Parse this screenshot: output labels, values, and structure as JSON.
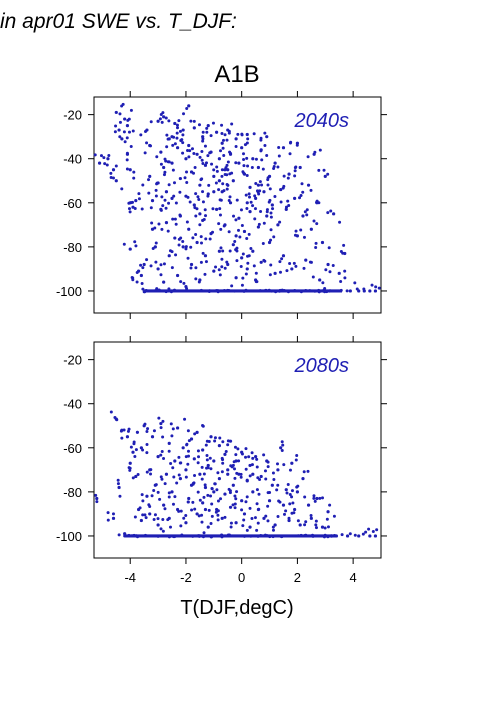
{
  "figure_title": "in apr01 SWE vs. T_DJF:",
  "scenario_title": "A1B",
  "xlabel": "T(DJF,degC)",
  "point_color": "#1f1fb4",
  "chart_data": [
    {
      "type": "scatter",
      "annotation": "2040s",
      "xlim": [
        -5.3,
        5.0
      ],
      "ylim": [
        -110,
        -12
      ],
      "x_ticks": [
        -4,
        -2,
        0,
        2,
        4
      ],
      "y_ticks": [
        -100,
        -80,
        -60,
        -40,
        -20
      ],
      "points": [
        [
          -5.1,
          -42
        ],
        [
          -4.8,
          -40
        ],
        [
          -4.6,
          -45
        ],
        [
          -4.5,
          -50
        ],
        [
          -4.5,
          -19
        ],
        [
          -4.4,
          -27
        ],
        [
          -4.3,
          -31
        ],
        [
          -4.2,
          -22
        ],
        [
          -4.1,
          -25
        ],
        [
          -4.1,
          -38
        ],
        [
          -4.0,
          -60
        ],
        [
          -4.0,
          -45
        ],
        [
          -3.9,
          -62
        ],
        [
          -4.0,
          -81
        ],
        [
          -3.8,
          -59
        ],
        [
          -3.7,
          -91
        ],
        [
          -3.6,
          -93
        ],
        [
          -3.5,
          -88
        ],
        [
          -3.4,
          -27
        ],
        [
          -3.4,
          -100
        ],
        [
          -3.3,
          -34
        ],
        [
          -3.3,
          -48
        ],
        [
          -3.2,
          -59
        ],
        [
          -3.2,
          -72
        ],
        [
          -3.1,
          -80
        ],
        [
          -3.0,
          -23
        ],
        [
          -3.0,
          -51
        ],
        [
          -3.0,
          -90
        ],
        [
          -2.9,
          -37
        ],
        [
          -2.9,
          -63
        ],
        [
          -2.8,
          -21
        ],
        [
          -2.8,
          -44
        ],
        [
          -2.8,
          -96
        ],
        [
          -2.7,
          -55
        ],
        [
          -2.7,
          -69
        ],
        [
          -2.6,
          -31
        ],
        [
          -2.6,
          -84
        ],
        [
          -2.5,
          -42
        ],
        [
          -2.5,
          -58
        ],
        [
          -2.4,
          -24
        ],
        [
          -2.4,
          -76
        ],
        [
          -2.3,
          -35
        ],
        [
          -2.3,
          -93
        ],
        [
          -2.2,
          -49
        ],
        [
          -2.2,
          -66
        ],
        [
          -2.1,
          -27
        ],
        [
          -2.1,
          -80
        ],
        [
          -2.0,
          -40
        ],
        [
          -2.0,
          -57
        ],
        [
          -2.0,
          -98
        ],
        [
          -1.9,
          -16
        ],
        [
          -1.9,
          -34
        ],
        [
          -1.9,
          -72
        ],
        [
          -1.8,
          -46
        ],
        [
          -1.8,
          -88
        ],
        [
          -1.7,
          -26
        ],
        [
          -1.7,
          -61
        ],
        [
          -1.6,
          -38
        ],
        [
          -1.6,
          -78
        ],
        [
          -1.5,
          -52
        ],
        [
          -1.5,
          -95
        ],
        [
          -1.4,
          -30
        ],
        [
          -1.4,
          -68
        ],
        [
          -1.3,
          -43
        ],
        [
          -1.3,
          -84
        ],
        [
          -1.2,
          -25
        ],
        [
          -1.2,
          -56
        ],
        [
          -1.1,
          -37
        ],
        [
          -1.1,
          -74
        ],
        [
          -1.0,
          -48
        ],
        [
          -1.0,
          -91
        ],
        [
          -0.9,
          -28
        ],
        [
          -0.9,
          -63
        ],
        [
          -0.8,
          -40
        ],
        [
          -0.8,
          -82
        ],
        [
          -0.7,
          -33
        ],
        [
          -0.7,
          -55
        ],
        [
          -0.6,
          -45
        ],
        [
          -0.6,
          -70
        ],
        [
          -0.5,
          -27
        ],
        [
          -0.5,
          -88
        ],
        [
          -0.4,
          -38
        ],
        [
          -0.4,
          -60
        ],
        [
          -0.3,
          -50
        ],
        [
          -0.3,
          -79
        ],
        [
          -0.2,
          -31
        ],
        [
          -0.2,
          -94
        ],
        [
          -0.1,
          -42
        ],
        [
          -0.1,
          -67
        ],
        [
          0.0,
          -35
        ],
        [
          0.0,
          -85
        ],
        [
          0.1,
          -47
        ],
        [
          0.1,
          -73
        ],
        [
          0.2,
          -29
        ],
        [
          0.2,
          -90
        ],
        [
          0.3,
          -53
        ],
        [
          0.3,
          -64
        ],
        [
          0.4,
          -40
        ],
        [
          0.4,
          -82
        ],
        [
          0.5,
          -58
        ],
        [
          0.5,
          -95
        ],
        [
          0.6,
          -44
        ],
        [
          0.6,
          -71
        ],
        [
          0.7,
          -36
        ],
        [
          0.7,
          -87
        ],
        [
          0.8,
          -55
        ],
        [
          0.9,
          -66
        ],
        [
          0.9,
          -30
        ],
        [
          1.0,
          -48
        ],
        [
          1.0,
          -78
        ],
        [
          1.1,
          -61
        ],
        [
          1.2,
          -92
        ],
        [
          1.2,
          -42
        ],
        [
          1.3,
          -70
        ],
        [
          1.4,
          -54
        ],
        [
          1.5,
          -84
        ],
        [
          1.5,
          -35
        ],
        [
          1.6,
          -63
        ],
        [
          1.7,
          -47
        ],
        [
          1.8,
          -90
        ],
        [
          1.9,
          -58
        ],
        [
          2.0,
          -75
        ],
        [
          2.0,
          -33
        ],
        [
          2.1,
          -44
        ],
        [
          2.2,
          -66
        ],
        [
          2.3,
          -86
        ],
        [
          2.4,
          -52
        ],
        [
          2.5,
          -72
        ],
        [
          2.6,
          -38
        ],
        [
          2.7,
          -60
        ],
        [
          2.8,
          -95
        ],
        [
          2.9,
          -78
        ],
        [
          3.0,
          -48
        ],
        [
          3.1,
          -88
        ],
        [
          3.3,
          -65
        ],
        [
          3.5,
          -92
        ],
        [
          3.7,
          -83
        ],
        [
          3.9,
          -100
        ],
        [
          4.2,
          -100
        ],
        [
          4.4,
          -100
        ],
        [
          4.6,
          -100
        ],
        [
          4.8,
          -100
        ],
        [
          -1.0,
          -55
        ],
        [
          -0.5,
          -45
        ],
        [
          0.2,
          -60
        ],
        [
          -0.8,
          -50
        ],
        [
          0.6,
          -52
        ],
        [
          -1.5,
          -65
        ],
        [
          -2.5,
          -30
        ],
        [
          -0.2,
          -75
        ]
      ],
      "floor_value": -100,
      "floor_range": [
        -3.5,
        3.6
      ]
    },
    {
      "type": "scatter",
      "annotation": "2080s",
      "xlim": [
        -5.3,
        5.0
      ],
      "ylim": [
        -110,
        -12
      ],
      "x_ticks": [
        -4,
        -2,
        0,
        2,
        4
      ],
      "y_ticks": [
        -100,
        -80,
        -60,
        -40,
        -20
      ],
      "points": [
        [
          -5.2,
          -83
        ],
        [
          -4.6,
          -92
        ],
        [
          -4.5,
          -47
        ],
        [
          -4.4,
          -78
        ],
        [
          -4.3,
          -52
        ],
        [
          -4.2,
          -99
        ],
        [
          -4.1,
          -55
        ],
        [
          -4.0,
          -67
        ],
        [
          -3.9,
          -62
        ],
        [
          -3.8,
          -73
        ],
        [
          -3.7,
          -88
        ],
        [
          -3.6,
          -60
        ],
        [
          -3.6,
          -93
        ],
        [
          -3.5,
          -50
        ],
        [
          -3.4,
          -82
        ],
        [
          -3.3,
          -70
        ],
        [
          -3.3,
          -90
        ],
        [
          -3.2,
          -55
        ],
        [
          -3.1,
          -77
        ],
        [
          -3.0,
          -64
        ],
        [
          -3.0,
          -95
        ],
        [
          -2.9,
          -49
        ],
        [
          -2.8,
          -86
        ],
        [
          -2.7,
          -72
        ],
        [
          -2.6,
          -58
        ],
        [
          -2.6,
          -92
        ],
        [
          -2.5,
          -80
        ],
        [
          -2.4,
          -66
        ],
        [
          -2.3,
          -51
        ],
        [
          -2.3,
          -88
        ],
        [
          -2.2,
          -74
        ],
        [
          -2.1,
          -60
        ],
        [
          -2.0,
          -94
        ],
        [
          -2.0,
          -70
        ],
        [
          -1.9,
          -83
        ],
        [
          -1.8,
          -56
        ],
        [
          -1.8,
          -77
        ],
        [
          -1.7,
          -65
        ],
        [
          -1.6,
          -90
        ],
        [
          -1.6,
          -53
        ],
        [
          -1.5,
          -72
        ],
        [
          -1.4,
          -85
        ],
        [
          -1.4,
          -61
        ],
        [
          -1.3,
          -78
        ],
        [
          -1.2,
          -68
        ],
        [
          -1.2,
          -96
        ],
        [
          -1.1,
          -55
        ],
        [
          -1.0,
          -80
        ],
        [
          -1.0,
          -66
        ],
        [
          -0.9,
          -88
        ],
        [
          -0.8,
          -59
        ],
        [
          -0.8,
          -74
        ],
        [
          -0.7,
          -92
        ],
        [
          -0.6,
          -63
        ],
        [
          -0.6,
          -81
        ],
        [
          -0.5,
          -70
        ],
        [
          -0.4,
          -87
        ],
        [
          -0.4,
          -57
        ],
        [
          -0.3,
          -77
        ],
        [
          -0.2,
          -66
        ],
        [
          -0.2,
          -94
        ],
        [
          -0.1,
          -72
        ],
        [
          0.0,
          -84
        ],
        [
          0.0,
          -62
        ],
        [
          0.1,
          -90
        ],
        [
          0.2,
          -75
        ],
        [
          0.3,
          -68
        ],
        [
          0.3,
          -96
        ],
        [
          0.4,
          -80
        ],
        [
          0.5,
          -64
        ],
        [
          0.6,
          -88
        ],
        [
          0.7,
          -73
        ],
        [
          0.8,
          -92
        ],
        [
          0.9,
          -66
        ],
        [
          1.0,
          -84
        ],
        [
          1.1,
          -77
        ],
        [
          1.2,
          -95
        ],
        [
          1.3,
          -70
        ],
        [
          1.4,
          -60
        ],
        [
          1.5,
          -86
        ],
        [
          1.6,
          -79
        ],
        [
          1.7,
          -93
        ],
        [
          1.8,
          -67
        ],
        [
          1.9,
          -88
        ],
        [
          2.0,
          -80
        ],
        [
          2.1,
          -95
        ],
        [
          2.2,
          -74
        ],
        [
          2.4,
          -86
        ],
        [
          2.5,
          -92
        ],
        [
          2.7,
          -83
        ],
        [
          2.9,
          -96
        ],
        [
          3.1,
          -89
        ],
        [
          3.4,
          -100
        ],
        [
          3.8,
          -100
        ],
        [
          4.2,
          -100
        ],
        [
          4.6,
          -100
        ],
        [
          4.8,
          -100
        ],
        [
          -0.5,
          -72
        ],
        [
          0.4,
          -72
        ],
        [
          -1.3,
          -88
        ]
      ],
      "floor_value": -100,
      "floor_range": [
        -4.2,
        3.4
      ]
    }
  ]
}
